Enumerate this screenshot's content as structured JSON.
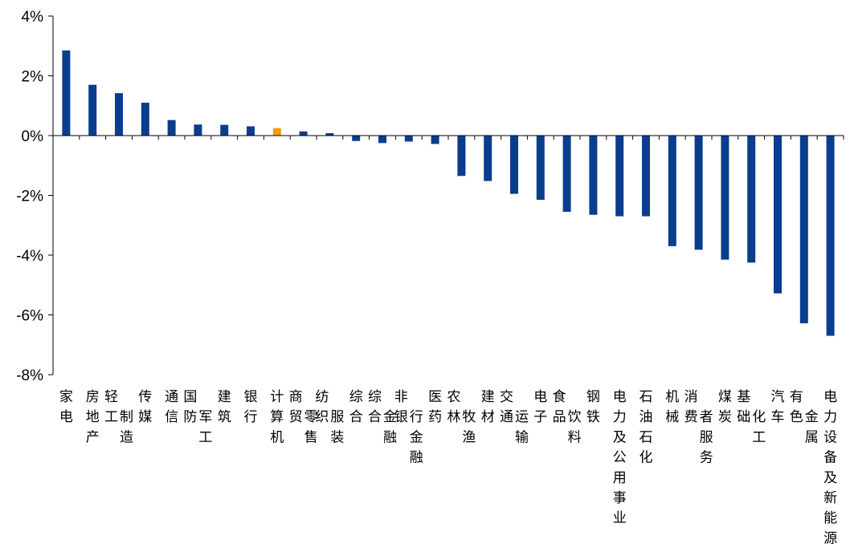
{
  "chart_data": {
    "type": "bar",
    "title": "",
    "xlabel": "",
    "ylabel": "",
    "ylim": [
      -8,
      4
    ],
    "yticks": [
      4,
      2,
      0,
      -2,
      -4,
      -6,
      -8
    ],
    "ytick_labels": [
      "4%",
      "2%",
      "0%",
      "-2%",
      "-4%",
      "-6%",
      "-8%"
    ],
    "grid": false,
    "legend": "none",
    "colors": {
      "default": "#0B3D8E",
      "highlight": "#F39C12"
    },
    "highlight_category": "计算机",
    "categories": [
      "家电",
      "房地产",
      "轻工制造",
      "传媒",
      "通信",
      "国防军工",
      "建筑",
      "银行",
      "计算机",
      "商贸零售",
      "纺织服装",
      "综合",
      "综合金融",
      "非银行金融",
      "医药",
      "农林牧渔",
      "建材",
      "交通运输",
      "电子",
      "食品饮料",
      "钢铁",
      "电力及公用事业",
      "石油石化",
      "机械",
      "消费者服务",
      "煤炭",
      "基础化工",
      "汽车",
      "有色金属",
      "电力设备及新能源"
    ],
    "values": [
      2.85,
      1.7,
      1.42,
      1.1,
      0.52,
      0.37,
      0.36,
      0.31,
      0.25,
      0.14,
      0.08,
      -0.18,
      -0.25,
      -0.2,
      -0.28,
      -1.35,
      -1.52,
      -1.95,
      -2.15,
      -2.55,
      -2.65,
      -2.7,
      -2.7,
      -3.7,
      -3.82,
      -4.15,
      -4.25,
      -5.28,
      -6.28,
      -6.7
    ]
  }
}
